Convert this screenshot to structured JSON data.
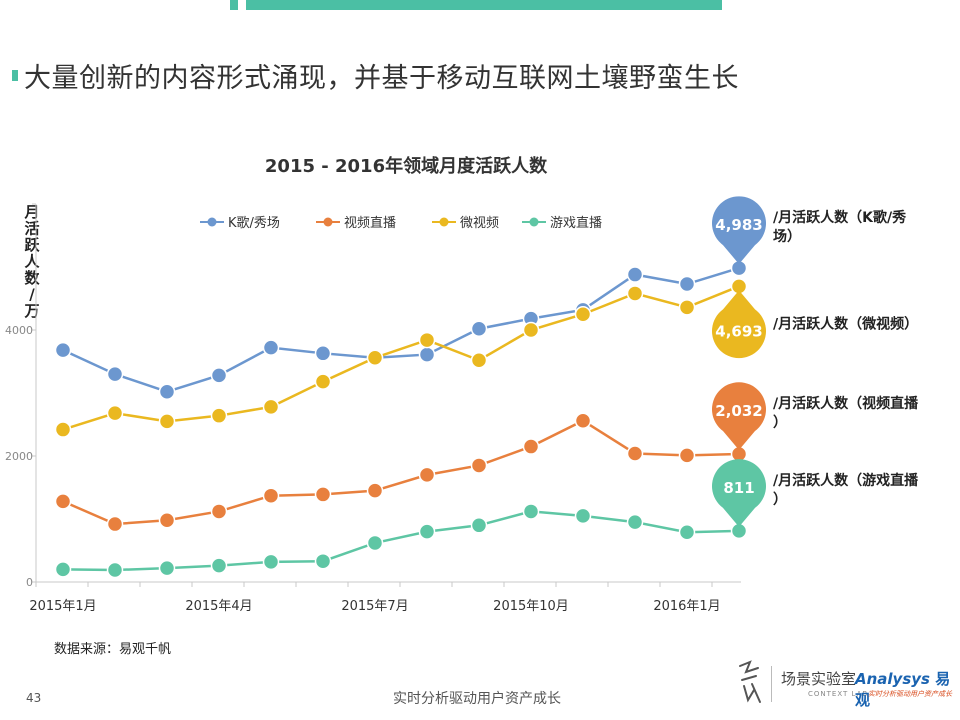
{
  "headline": "大量创新的内容形式涌现，并基于移动互联网土壤野蛮生长",
  "source": "数据来源：易观千帆",
  "page_number": "43",
  "footer": "实时分析驱动用户资产成长",
  "logo": {
    "lab_name": "场景实验室",
    "lab_sub": "CONTEXT LAB",
    "brand": "Analysys",
    "brand_cn": "易观",
    "brand_sub": "实时分析驱动用户资产成长"
  },
  "chart_data": {
    "type": "line",
    "title": "2015 - 2016年领域月度活跃人数",
    "ylabel": "月活跃人数/万",
    "ylim": [
      0,
      6000
    ],
    "yticks": [
      0,
      2000,
      4000
    ],
    "ytick_labels": [
      "0",
      "2000",
      "4000"
    ],
    "xtick_labels": [
      "2015年1月",
      "2015年4月",
      "2015年7月",
      "2015年10月",
      "2016年1月"
    ],
    "xtick_index": [
      0,
      3,
      6,
      9,
      12
    ],
    "legend": "top",
    "series": [
      {
        "name": "K歌/秀场",
        "color": "#6c97cf",
        "values": [
          3680,
          3300,
          3020,
          3280,
          3720,
          3630,
          3560,
          3610,
          4020,
          4180,
          4320,
          4880,
          4730,
          4983
        ]
      },
      {
        "name": "视频直播",
        "color": "#e8803e",
        "values": [
          1280,
          920,
          980,
          1120,
          1370,
          1390,
          1450,
          1700,
          1850,
          2150,
          2560,
          2040,
          2010,
          2032
        ]
      },
      {
        "name": "微视频",
        "color": "#eab820",
        "values": [
          2420,
          2680,
          2550,
          2640,
          2780,
          3180,
          3560,
          3840,
          3520,
          4000,
          4250,
          4580,
          4360,
          4693
        ]
      },
      {
        "name": "游戏直播",
        "color": "#5ec6a4",
        "values": [
          200,
          190,
          220,
          260,
          320,
          330,
          620,
          800,
          900,
          1120,
          1050,
          950,
          790,
          811
        ]
      }
    ],
    "callouts": [
      {
        "series": "K歌/秀场",
        "value": "4,983",
        "label": "/月活跃人数（K歌/秀场）",
        "pointer": "down"
      },
      {
        "series": "微视频",
        "value": "4,693",
        "label": "/月活跃人数（微视频）",
        "pointer": "up"
      },
      {
        "series": "视频直播",
        "value": "2,032",
        "label": "/月活跃人数（视频直播）",
        "pointer": "down"
      },
      {
        "series": "游戏直播",
        "value": "811",
        "label": "/月活跃人数（游戏直播）",
        "pointer": "down"
      }
    ]
  }
}
